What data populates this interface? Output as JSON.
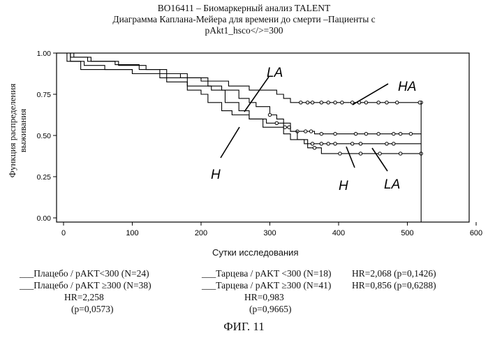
{
  "header": {
    "line1": "ВО16411 – Биомаркерный анализ TALENT",
    "line2": "Диаграмма Каплана-Мейера для времени до смерти –Пациенты с",
    "line3": "pAkt1_hsco</>=300"
  },
  "chart_data": {
    "type": "line",
    "ylabel_lines": [
      "Функция распределения",
      "выживания"
    ],
    "xlabel": "Сутки исследования",
    "xlim": [
      0,
      600
    ],
    "ylim": [
      0,
      1
    ],
    "x_ticks": [
      0,
      100,
      200,
      300,
      400,
      500,
      600
    ],
    "y_ticks": [
      0.0,
      0.25,
      0.5,
      0.75,
      1.0
    ],
    "y_tick_labels": [
      "0.00",
      "0.25",
      "0.50",
      "0.75",
      "1.00"
    ],
    "series": [
      {
        "name": "Тарцева / pAKT ≥300 (N=41)",
        "annotation": "HA",
        "steps": [
          [
            0,
            1.0
          ],
          [
            15,
            0.975
          ],
          [
            40,
            0.95
          ],
          [
            75,
            0.93
          ],
          [
            110,
            0.9
          ],
          [
            140,
            0.875
          ],
          [
            170,
            0.85
          ],
          [
            200,
            0.83
          ],
          [
            240,
            0.8
          ],
          [
            270,
            0.775
          ],
          [
            310,
            0.75
          ],
          [
            320,
            0.725
          ],
          [
            330,
            0.7
          ],
          [
            520,
            0.7
          ]
        ],
        "censor_x": [
          345,
          355,
          362,
          375,
          385,
          395,
          405,
          420,
          430,
          440,
          458,
          470,
          485,
          545,
          518
        ]
      },
      {
        "name": "Плацебо / pAKT ≥300 (N=38)",
        "annotation": "H",
        "steps": [
          [
            0,
            1.0
          ],
          [
            10,
            0.975
          ],
          [
            35,
            0.95
          ],
          [
            80,
            0.925
          ],
          [
            120,
            0.9
          ],
          [
            150,
            0.875
          ],
          [
            180,
            0.85
          ],
          [
            210,
            0.8
          ],
          [
            230,
            0.775
          ],
          [
            255,
            0.725
          ],
          [
            270,
            0.7
          ],
          [
            280,
            0.675
          ],
          [
            300,
            0.625
          ],
          [
            310,
            0.6
          ],
          [
            320,
            0.55
          ],
          [
            330,
            0.525
          ],
          [
            360,
            0.525
          ],
          [
            365,
            0.51
          ],
          [
            520,
            0.51
          ]
        ],
        "censor_x": [
          300,
          322,
          328,
          340,
          352,
          360,
          375,
          395,
          425,
          440,
          458,
          480,
          490,
          505
        ]
      },
      {
        "name": "Тарцева / pAKT <300 (N=18)",
        "annotation": "LA",
        "steps": [
          [
            0,
            1.0
          ],
          [
            10,
            0.95
          ],
          [
            25,
            0.9
          ],
          [
            100,
            0.875
          ],
          [
            140,
            0.85
          ],
          [
            180,
            0.8
          ],
          [
            215,
            0.775
          ],
          [
            235,
            0.7
          ],
          [
            255,
            0.65
          ],
          [
            270,
            0.6
          ],
          [
            290,
            0.55
          ],
          [
            320,
            0.51
          ],
          [
            330,
            0.475
          ],
          [
            355,
            0.45
          ],
          [
            520,
            0.45
          ]
        ],
        "censor_x": [
          362,
          375,
          385,
          395,
          420,
          432,
          470,
          480
        ]
      },
      {
        "name": "Плацебо / pAKT<300 (N=24)",
        "annotation": "LA",
        "steps": [
          [
            0,
            1.0
          ],
          [
            5,
            0.95
          ],
          [
            30,
            0.925
          ],
          [
            60,
            0.9
          ],
          [
            100,
            0.875
          ],
          [
            150,
            0.825
          ],
          [
            180,
            0.775
          ],
          [
            200,
            0.75
          ],
          [
            210,
            0.7
          ],
          [
            230,
            0.65
          ],
          [
            245,
            0.625
          ],
          [
            270,
            0.6
          ],
          [
            295,
            0.575
          ],
          [
            330,
            0.525
          ],
          [
            340,
            0.475
          ],
          [
            350,
            0.45
          ],
          [
            355,
            0.425
          ],
          [
            375,
            0.39
          ],
          [
            520,
            0.39
          ]
        ],
        "censor_x": [
          310,
          365,
          402,
          432,
          460,
          490,
          525
        ]
      }
    ],
    "final_drop_x": 520
  },
  "legend": {
    "row1_left": "___Плацебо / pAKT<300 (N=24)",
    "row1_right": "___Тарцева / pAKT <300 (N=18)",
    "row1_hr": "HR=2,068 (p=0,1426)",
    "row2_left": "___Плацебо / pAKT ≥300 (N=38)",
    "row2_right": "___Тарцева / pAKT ≥300 (N=41)",
    "row2_hr": "HR=0,856 (p=0,6288)",
    "row3_left": "HR=2,258",
    "row3_right": "HR=0,983",
    "row4_left": "(p=0,0573)",
    "row4_right": "(p=0,9665)"
  },
  "annotations": {
    "ha": "HA",
    "la_upper": "LA",
    "h_left": "H",
    "h_right": "H",
    "la_lower": "LA"
  },
  "figure_caption": "ФИГ. 11"
}
